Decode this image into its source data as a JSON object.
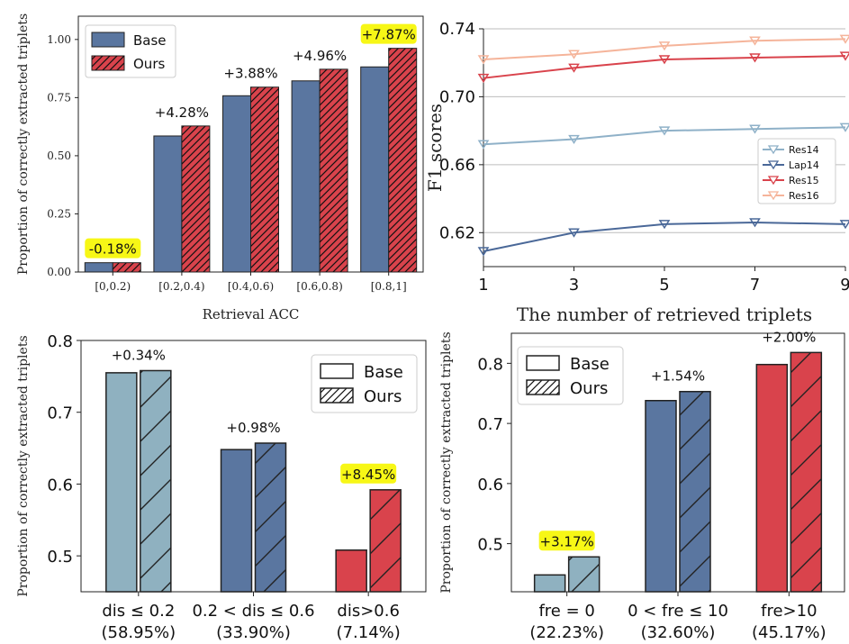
{
  "chart_data": [
    {
      "id": "top-left",
      "type": "bar",
      "xlabel": "Retrieval ACC",
      "ylabel": "Proportion of correctly extracted triplets",
      "ylim": [
        0,
        1.1
      ],
      "yticks": [
        "0.00",
        "0.25",
        "0.50",
        "0.75",
        "1.00"
      ],
      "categories": [
        "[0,0.2)",
        "[0.2,0.4)",
        "[0.4,0.6)",
        "[0.6,0.8)",
        "[0.8,1]"
      ],
      "series": [
        {
          "name": "Base",
          "values": [
            0.04,
            0.585,
            0.758,
            0.822,
            0.882
          ],
          "color": "#5a76a0"
        },
        {
          "name": "Ours",
          "values": [
            0.04,
            0.628,
            0.795,
            0.872,
            0.962
          ],
          "color": "#d9434c",
          "hatch": true
        }
      ],
      "annotations": [
        "-0.18%",
        "+4.28%",
        "+3.88%",
        "+4.96%",
        "+7.87%"
      ],
      "highlighted": [
        0,
        4
      ],
      "legend": "top-left"
    },
    {
      "id": "top-right",
      "type": "line",
      "xlabel": "The number of retrieved triplets",
      "ylabel": "F1 scores",
      "x": [
        1,
        3,
        5,
        7,
        9
      ],
      "ylim": [
        0.6,
        0.74
      ],
      "yticks": [
        "0.62",
        "0.66",
        "0.70",
        "0.74"
      ],
      "grid": true,
      "series": [
        {
          "name": "Res14",
          "values": [
            0.672,
            0.675,
            0.68,
            0.681,
            0.682
          ],
          "color": "#8fb1c8"
        },
        {
          "name": "Lap14",
          "values": [
            0.609,
            0.62,
            0.625,
            0.626,
            0.625
          ],
          "color": "#4a6898"
        },
        {
          "name": "Res15",
          "values": [
            0.711,
            0.717,
            0.722,
            0.723,
            0.724
          ],
          "color": "#d9434c"
        },
        {
          "name": "Res16",
          "values": [
            0.722,
            0.725,
            0.73,
            0.733,
            0.734
          ],
          "color": "#f5b49a"
        }
      ],
      "legend": "center-right"
    },
    {
      "id": "bottom-left",
      "type": "bar",
      "ylabel": "Proportion of correctly extracted triplets",
      "ylim": [
        0.45,
        0.8
      ],
      "yticks": [
        "0.5",
        "0.6",
        "0.7",
        "0.8"
      ],
      "categories": [
        "dis ≤ 0.2",
        "0.2 < dis ≤ 0.6",
        "dis>0.6"
      ],
      "category_sub": [
        "(58.95%)",
        "(33.90%)",
        "(7.14%)"
      ],
      "series": [
        {
          "name": "Base",
          "values": [
            0.755,
            0.648,
            0.508
          ]
        },
        {
          "name": "Ours",
          "values": [
            0.758,
            0.657,
            0.592
          ]
        }
      ],
      "colors": [
        "#8fb1c0",
        "#5a76a0",
        "#d9434c"
      ],
      "annotations": [
        "+0.34%",
        "+0.98%",
        "+8.45%"
      ],
      "highlighted": [
        2
      ],
      "legend": "top-right"
    },
    {
      "id": "bottom-right",
      "type": "bar",
      "ylabel": "Proportion of correctly extracted triplets",
      "ylim": [
        0.42,
        0.85
      ],
      "yticks": [
        "0.5",
        "0.6",
        "0.7",
        "0.8"
      ],
      "categories": [
        "fre = 0",
        "0 < fre ≤ 10",
        "fre>10"
      ],
      "category_sub": [
        "(22.23%)",
        "(32.60%)",
        "(45.17%)"
      ],
      "series": [
        {
          "name": "Base",
          "values": [
            0.448,
            0.738,
            0.798
          ]
        },
        {
          "name": "Ours",
          "values": [
            0.478,
            0.753,
            0.818
          ]
        }
      ],
      "colors": [
        "#8fb1c0",
        "#5a76a0",
        "#d9434c"
      ],
      "annotations": [
        "+3.17%",
        "+1.54%",
        "+2.00%"
      ],
      "highlighted": [
        0
      ],
      "legend": "top-left"
    }
  ]
}
